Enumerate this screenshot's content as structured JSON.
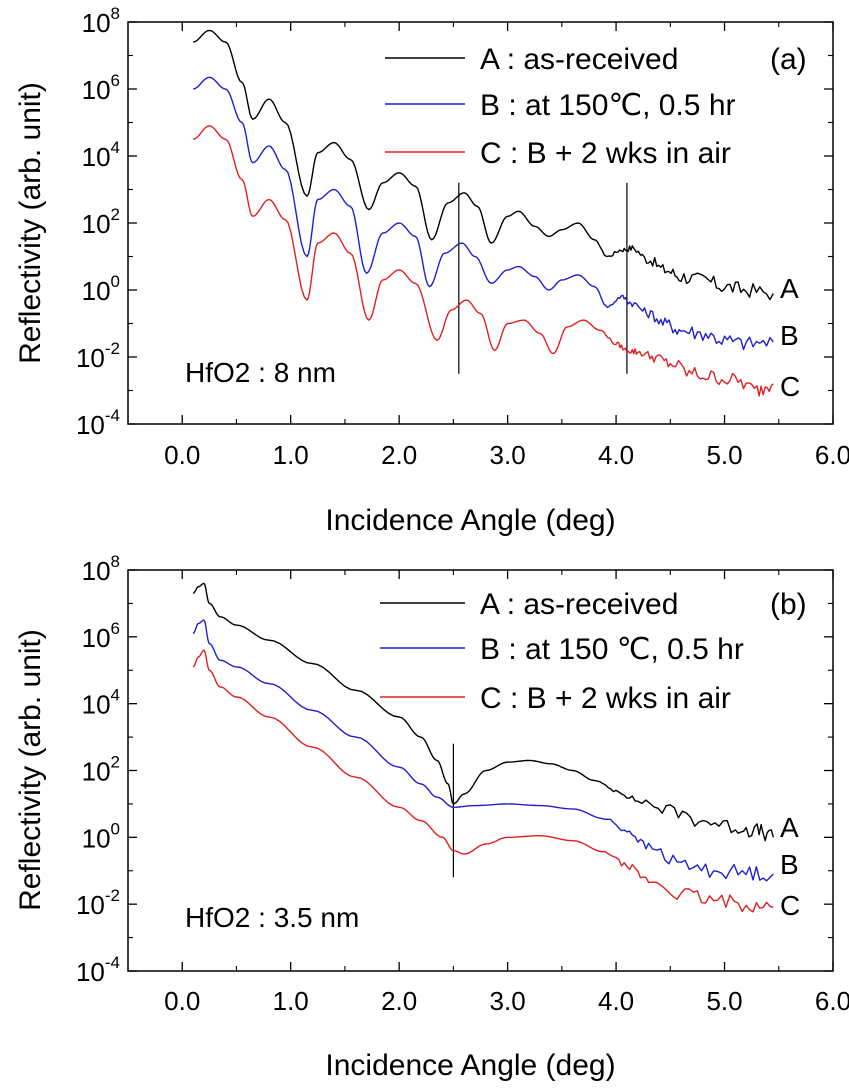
{
  "chart_data": [
    {
      "type": "line",
      "panel_label": "(a)",
      "annotation": "HfO2 : 8 nm",
      "xlabel": "Incidence Angle (deg)",
      "ylabel": "Reflectivity (arb. unit)",
      "xlim": [
        -0.5,
        6.0
      ],
      "ylim_log10": [
        -4,
        8
      ],
      "x_ticks": [
        "0.0",
        "1.0",
        "2.0",
        "3.0",
        "4.0",
        "5.0",
        "6.0"
      ],
      "y_ticks": [
        {
          "base": "10",
          "exp": "-4"
        },
        {
          "base": "10",
          "exp": "-2"
        },
        {
          "base": "10",
          "exp": "0"
        },
        {
          "base": "10",
          "exp": "2"
        },
        {
          "base": "10",
          "exp": "4"
        },
        {
          "base": "10",
          "exp": "6"
        },
        {
          "base": "10",
          "exp": "8"
        }
      ],
      "vertical_markers": [
        2.55,
        4.1
      ],
      "series": [
        {
          "name": "A : as-received",
          "end_label": "A",
          "color": "#000000",
          "x": [
            0.1,
            0.25,
            0.4,
            0.55,
            0.65,
            0.8,
            0.95,
            1.15,
            1.25,
            1.4,
            1.55,
            1.72,
            1.85,
            2.0,
            2.15,
            2.3,
            2.45,
            2.6,
            2.72,
            2.85,
            3.0,
            3.1,
            3.25,
            3.38,
            3.5,
            3.65,
            3.8,
            3.92,
            4.05,
            4.15,
            4.3,
            4.45,
            4.6,
            4.8,
            5.0,
            5.2,
            5.45
          ],
          "log10_y": [
            7.4,
            7.75,
            7.4,
            6.2,
            5.1,
            5.7,
            5.0,
            2.8,
            4.1,
            4.4,
            3.9,
            2.4,
            3.2,
            3.5,
            3.1,
            1.5,
            2.6,
            2.9,
            2.5,
            1.4,
            2.2,
            2.35,
            1.9,
            1.6,
            1.8,
            2.0,
            1.5,
            1.0,
            1.2,
            1.25,
            0.9,
            0.6,
            0.4,
            0.3,
            0.1,
            0.0,
            -0.1
          ]
        },
        {
          "name": "B : at 150℃, 0.5 hr",
          "end_label": "B",
          "color": "#1f1fd1",
          "x": [
            0.1,
            0.25,
            0.4,
            0.55,
            0.65,
            0.8,
            0.95,
            1.15,
            1.25,
            1.4,
            1.55,
            1.7,
            1.85,
            2.0,
            2.15,
            2.28,
            2.42,
            2.58,
            2.7,
            2.85,
            3.0,
            3.1,
            3.25,
            3.38,
            3.5,
            3.65,
            3.8,
            3.92,
            4.05,
            4.15,
            4.3,
            4.45,
            4.6,
            4.8,
            5.0,
            5.2,
            5.45
          ],
          "log10_y": [
            6.0,
            6.35,
            6.0,
            5.0,
            3.8,
            4.3,
            3.6,
            1.0,
            2.7,
            3.0,
            2.5,
            0.5,
            1.7,
            2.0,
            1.6,
            0.1,
            1.1,
            1.4,
            1.0,
            0.2,
            0.6,
            0.7,
            0.4,
            0.0,
            0.3,
            0.45,
            0.1,
            -0.5,
            -0.2,
            -0.4,
            -0.7,
            -1.0,
            -1.2,
            -1.3,
            -1.5,
            -1.6,
            -1.55
          ]
        },
        {
          "name": "C : B + 2 wks in air",
          "end_label": "C",
          "color": "#e02020",
          "x": [
            0.1,
            0.25,
            0.4,
            0.55,
            0.65,
            0.8,
            0.95,
            1.15,
            1.25,
            1.4,
            1.55,
            1.72,
            1.85,
            2.0,
            2.15,
            2.35,
            2.48,
            2.62,
            2.75,
            2.88,
            3.0,
            3.15,
            3.3,
            3.42,
            3.55,
            3.7,
            3.85,
            4.0,
            4.1,
            4.2,
            4.35,
            4.5,
            4.7,
            4.9,
            5.1,
            5.3,
            5.45
          ],
          "log10_y": [
            4.5,
            4.9,
            4.5,
            3.3,
            2.2,
            2.7,
            2.1,
            -0.3,
            1.4,
            1.7,
            1.1,
            -0.9,
            0.3,
            0.6,
            0.2,
            -1.5,
            -0.6,
            -0.3,
            -0.7,
            -1.8,
            -1.0,
            -0.9,
            -1.3,
            -1.9,
            -1.1,
            -0.9,
            -1.2,
            -1.6,
            -1.8,
            -1.85,
            -2.0,
            -2.2,
            -2.5,
            -2.6,
            -2.7,
            -3.0,
            -2.8
          ]
        }
      ]
    },
    {
      "type": "line",
      "panel_label": "(b)",
      "annotation": "HfO2 : 3.5 nm",
      "xlabel": "Incidence Angle (deg)",
      "ylabel": "Reflectivity (arb. unit)",
      "xlim": [
        -0.5,
        6.0
      ],
      "ylim_log10": [
        -4,
        8
      ],
      "x_ticks": [
        "0.0",
        "1.0",
        "2.0",
        "3.0",
        "4.0",
        "5.0",
        "6.0"
      ],
      "y_ticks": [
        {
          "base": "10",
          "exp": "-4"
        },
        {
          "base": "10",
          "exp": "-2"
        },
        {
          "base": "10",
          "exp": "0"
        },
        {
          "base": "10",
          "exp": "2"
        },
        {
          "base": "10",
          "exp": "4"
        },
        {
          "base": "10",
          "exp": "6"
        },
        {
          "base": "10",
          "exp": "8"
        }
      ],
      "vertical_markers": [
        2.5
      ],
      "series": [
        {
          "name": "A : as-received",
          "end_label": "A",
          "color": "#000000",
          "x": [
            0.1,
            0.15,
            0.2,
            0.25,
            0.35,
            0.5,
            0.8,
            1.2,
            1.6,
            2.0,
            2.2,
            2.35,
            2.45,
            2.5,
            2.6,
            2.8,
            3.0,
            3.2,
            3.4,
            3.6,
            3.8,
            4.0,
            4.2,
            4.5,
            4.8,
            5.1,
            5.3,
            5.45
          ],
          "log10_y": [
            7.3,
            7.5,
            7.6,
            7.0,
            6.6,
            6.35,
            5.9,
            5.2,
            4.4,
            3.6,
            3.0,
            2.3,
            1.6,
            1.0,
            1.3,
            2.0,
            2.25,
            2.3,
            2.2,
            2.0,
            1.7,
            1.4,
            1.1,
            0.8,
            0.5,
            0.3,
            0.2,
            0.0
          ]
        },
        {
          "name": "B : at 150 ℃, 0.5 hr",
          "end_label": "B",
          "color": "#1f1fd1",
          "x": [
            0.1,
            0.15,
            0.2,
            0.25,
            0.35,
            0.5,
            0.8,
            1.2,
            1.6,
            2.0,
            2.2,
            2.35,
            2.5,
            2.7,
            3.0,
            3.3,
            3.6,
            3.9,
            4.1,
            4.3,
            4.6,
            4.9,
            5.2,
            5.45
          ],
          "log10_y": [
            6.1,
            6.4,
            6.5,
            5.8,
            5.3,
            5.1,
            4.6,
            3.8,
            3.0,
            2.1,
            1.6,
            1.2,
            0.9,
            0.95,
            1.0,
            0.95,
            0.85,
            0.55,
            0.2,
            -0.3,
            -0.8,
            -1.0,
            -1.05,
            -1.1
          ]
        },
        {
          "name": "C : B + 2 wks in air",
          "end_label": "C",
          "color": "#e02020",
          "x": [
            0.1,
            0.15,
            0.2,
            0.25,
            0.35,
            0.5,
            0.8,
            1.2,
            1.6,
            2.0,
            2.2,
            2.4,
            2.5,
            2.6,
            2.8,
            3.0,
            3.3,
            3.6,
            3.9,
            4.1,
            4.3,
            4.6,
            4.9,
            5.2,
            5.45
          ],
          "log10_y": [
            5.1,
            5.4,
            5.6,
            5.0,
            4.5,
            4.2,
            3.6,
            2.7,
            1.8,
            0.9,
            0.5,
            0.0,
            -0.4,
            -0.5,
            -0.2,
            0.0,
            0.05,
            -0.1,
            -0.45,
            -0.85,
            -1.3,
            -1.7,
            -1.9,
            -2.0,
            -2.1
          ]
        }
      ]
    }
  ]
}
